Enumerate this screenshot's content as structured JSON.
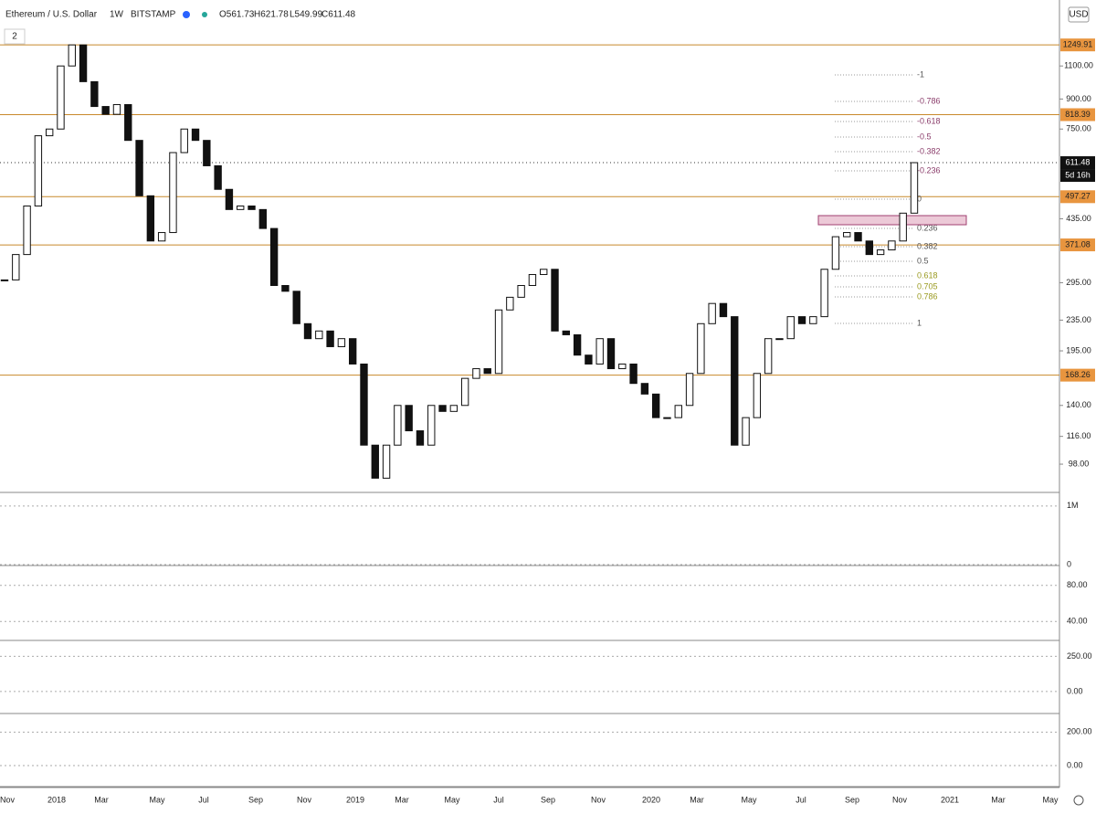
{
  "chart_data": {
    "type": "candlestick",
    "title": "Ethereum / U.S. Dollar",
    "interval": "1W",
    "exchange": "BITSTAMP",
    "ohlc": [
      "O561.73",
      "H621.78",
      "L549.99",
      "C611.48"
    ],
    "pane_count": "2",
    "currency": "USD",
    "log_scale": true,
    "ylim": [
      83,
      1642
    ],
    "yticks": [
      {
        "value": 1100,
        "label": "1100.00"
      },
      {
        "value": 900,
        "label": "900.00"
      },
      {
        "value": 750,
        "label": "750.00"
      },
      {
        "value": 435,
        "label": "435.00"
      },
      {
        "value": 295,
        "label": "295.00"
      },
      {
        "value": 235,
        "label": "235.00"
      },
      {
        "value": 195,
        "label": "195.00"
      },
      {
        "value": 140,
        "label": "140.00"
      },
      {
        "value": 116,
        "label": "116.00"
      },
      {
        "value": 98,
        "label": "98.00"
      }
    ],
    "levels": [
      1249.91,
      818.39,
      497.27,
      371.08,
      168.26
    ],
    "level_color": "#c8892b",
    "last_price": 611.48,
    "countdown": "5d 16h",
    "values": [
      300,
      350,
      470,
      720,
      750,
      1100,
      1250,
      1000,
      860,
      820,
      870,
      700,
      500,
      380,
      400,
      650,
      750,
      700,
      600,
      520,
      460,
      470,
      460,
      410,
      290,
      280,
      230,
      210,
      220,
      200,
      210,
      180,
      110,
      90,
      110,
      140,
      120,
      110,
      140,
      135,
      140,
      165,
      175,
      170,
      250,
      270,
      290,
      310,
      320,
      220,
      215,
      190,
      180,
      210,
      175,
      180,
      160,
      150,
      130,
      130,
      140,
      170,
      230,
      260,
      240,
      110,
      130,
      170,
      210,
      210,
      240,
      230,
      240,
      320,
      390,
      400,
      380,
      350,
      360,
      380,
      450,
      611.48
    ],
    "fib_labels": [
      "-1",
      "-0.786",
      "-0.618",
      "-0.5",
      "-0.382",
      "-0.236",
      "0",
      "0.236",
      "0.382",
      "0.5",
      "0.618",
      "0.705",
      "0.786",
      "1"
    ],
    "xlabels": [
      "Nov",
      "2018",
      "Mar",
      "May",
      "Jul",
      "Sep",
      "Nov",
      "2019",
      "Mar",
      "May",
      "Jul",
      "Sep",
      "Nov",
      "2020",
      "Mar",
      "May",
      "Jul",
      "Sep",
      "Nov",
      "2021",
      "Mar",
      "May"
    ],
    "panels": [
      {
        "yticks": [
          {
            "value": 1000000,
            "label": "1M"
          },
          0
        ],
        "ylim": [
          0,
          1200000
        ]
      },
      {
        "yticks": [
          {
            "value": 80,
            "label": "80.00"
          },
          {
            "value": 40,
            "label": "40.00"
          }
        ],
        "ylim": [
          20,
          100
        ]
      },
      {
        "yticks": [
          {
            "value": 250,
            "label": "250.00"
          },
          {
            "value": 0,
            "label": "0.00"
          }
        ],
        "ylim": [
          -150,
          350
        ]
      },
      {
        "yticks": [
          {
            "value": 200,
            "label": "200.00"
          },
          {
            "value": 0,
            "label": "0.00"
          }
        ],
        "ylim": [
          -120,
          300
        ]
      }
    ]
  }
}
